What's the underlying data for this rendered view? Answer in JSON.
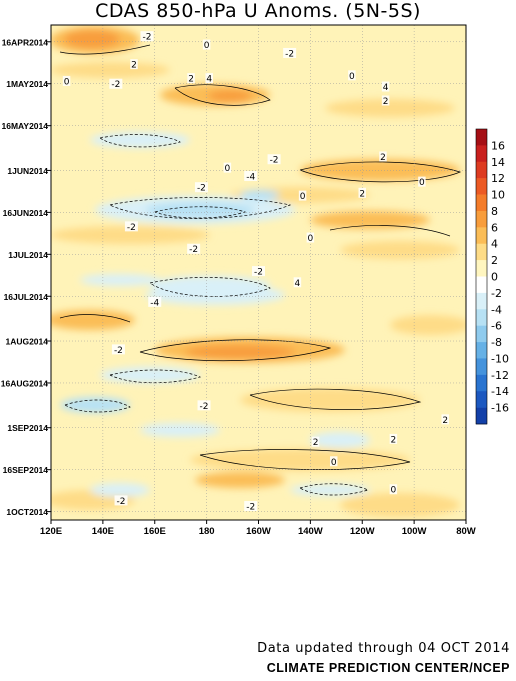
{
  "title": "CDAS 850-hPa U Anoms. (5N-5S)",
  "footer": {
    "updated": "Data updated through 04 OCT 2014",
    "organization": "CLIMATE PREDICTION CENTER/NCEP"
  },
  "chart_data": {
    "type": "heatmap",
    "title": "CDAS 850-hPa U Anoms. (5N-5S)",
    "x_tick_labels": [
      "120E",
      "140E",
      "160E",
      "180",
      "160W",
      "140W",
      "120W",
      "100W",
      "80W"
    ],
    "y_tick_labels": [
      "16APR2014",
      "1MAY2014",
      "16MAY2014",
      "1JUN2014",
      "16JUN2014",
      "1JUL2014",
      "16JUL2014",
      "1AUG2014",
      "16AUG2014",
      "1SEP2014",
      "16SEP2014",
      "1OCT2014"
    ],
    "colorbar_labels": [
      "16",
      "14",
      "12",
      "10",
      "8",
      "6",
      "4",
      "2",
      "0",
      "-2",
      "-4",
      "-6",
      "-8",
      "-10",
      "-12",
      "-14",
      "-16"
    ],
    "colorbar_colors": [
      "#a50f15",
      "#c9201e",
      "#dd3b21",
      "#ec5a24",
      "#f47c2a",
      "#f89d3c",
      "#fbbd57",
      "#fedc87",
      "#fff6c0",
      "#ffffff",
      "#d9f0f8",
      "#b7e1f4",
      "#8fcbee",
      "#66b1e6",
      "#4593dc",
      "#2a74d0",
      "#1c58c0",
      "#1340a8"
    ],
    "legend_position": "right",
    "grid": true,
    "contour_labels": [
      {
        "lon": 157,
        "day": 4,
        "value": -2
      },
      {
        "lon": 152,
        "day": 14,
        "value": 2
      },
      {
        "lon": 180,
        "day": 7,
        "value": 0
      },
      {
        "lon": 174,
        "day": 19,
        "value": 2
      },
      {
        "lon": 181,
        "day": 19,
        "value": 4
      },
      {
        "lon": 145,
        "day": 21,
        "value": -2
      },
      {
        "lon": 126,
        "day": 20,
        "value": 0
      },
      {
        "lon": 212,
        "day": 10,
        "value": -2
      },
      {
        "lon": 236,
        "day": 18,
        "value": 0
      },
      {
        "lon": 249,
        "day": 22,
        "value": 4
      },
      {
        "lon": 249,
        "day": 27,
        "value": 2
      },
      {
        "lon": 206,
        "day": 48,
        "value": -2
      },
      {
        "lon": 188,
        "day": 51,
        "value": 0
      },
      {
        "lon": 197,
        "day": 54,
        "value": -4
      },
      {
        "lon": 178,
        "day": 58,
        "value": -2
      },
      {
        "lon": 217,
        "day": 61,
        "value": 0
      },
      {
        "lon": 248,
        "day": 47,
        "value": 2
      },
      {
        "lon": 240,
        "day": 60,
        "value": 2
      },
      {
        "lon": 263,
        "day": 56,
        "value": 0
      },
      {
        "lon": 151,
        "day": 72,
        "value": -2
      },
      {
        "lon": 175,
        "day": 80,
        "value": -2
      },
      {
        "lon": 220,
        "day": 76,
        "value": 0
      },
      {
        "lon": 200,
        "day": 88,
        "value": -2
      },
      {
        "lon": 215,
        "day": 92,
        "value": 4
      },
      {
        "lon": 160,
        "day": 99,
        "value": -4
      },
      {
        "lon": 146,
        "day": 116,
        "value": -2
      },
      {
        "lon": 179,
        "day": 136,
        "value": -2
      },
      {
        "lon": 222,
        "day": 149,
        "value": 2
      },
      {
        "lon": 229,
        "day": 156,
        "value": 0
      },
      {
        "lon": 252,
        "day": 148,
        "value": 2
      },
      {
        "lon": 197,
        "day": 172,
        "value": -2
      },
      {
        "lon": 147,
        "day": 170,
        "value": -2
      },
      {
        "lon": 252,
        "day": 166,
        "value": 0
      },
      {
        "lon": 272,
        "day": 141,
        "value": 2
      }
    ]
  }
}
